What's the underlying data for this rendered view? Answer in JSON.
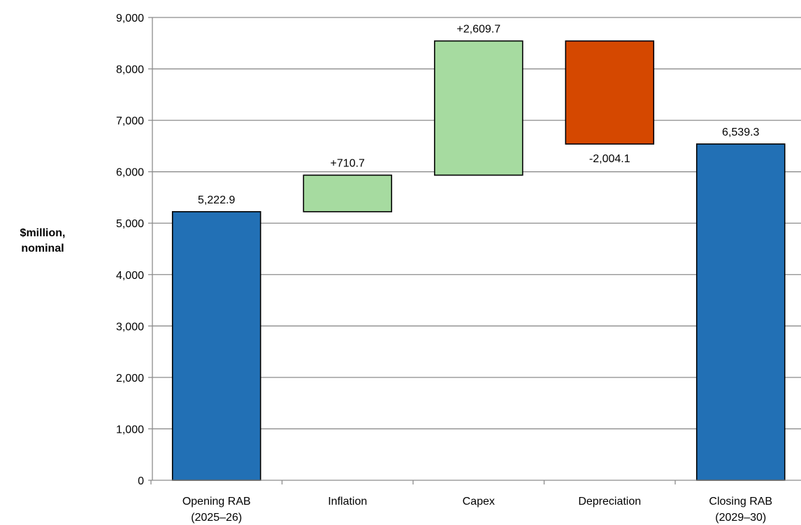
{
  "chart_data": {
    "type": "waterfall",
    "ylabel": "$million,\nnominal",
    "ylim": [
      0,
      9000
    ],
    "yticks": [
      0,
      1000,
      2000,
      3000,
      4000,
      5000,
      6000,
      7000,
      8000,
      9000
    ],
    "ytick_labels": [
      "0",
      "1,000",
      "2,000",
      "3,000",
      "4,000",
      "5,000",
      "6,000",
      "7,000",
      "8,000",
      "9,000"
    ],
    "grid": true,
    "categories": [
      "Opening RAB\n(2025–26)",
      "Inflation",
      "Capex",
      "Depreciation",
      "Closing RAB\n(2029–30)"
    ],
    "bars": [
      {
        "kind": "total",
        "start": 0,
        "end": 5222.9,
        "label": "5,222.9",
        "label_position": "above",
        "color": "#2270b5"
      },
      {
        "kind": "increase",
        "start": 5222.9,
        "end": 5933.6,
        "label": "+710.7",
        "label_position": "above",
        "color": "#a6dba0"
      },
      {
        "kind": "increase",
        "start": 5933.6,
        "end": 8543.3,
        "label": "+2,609.7",
        "label_position": "above",
        "color": "#a6dba0"
      },
      {
        "kind": "decrease",
        "start": 8543.3,
        "end": 6539.2,
        "label": "-2,004.1",
        "label_position": "below",
        "color": "#d54800"
      },
      {
        "kind": "total",
        "start": 0,
        "end": 6539.3,
        "label": "6,539.3",
        "label_position": "above",
        "color": "#2270b5"
      }
    ]
  }
}
